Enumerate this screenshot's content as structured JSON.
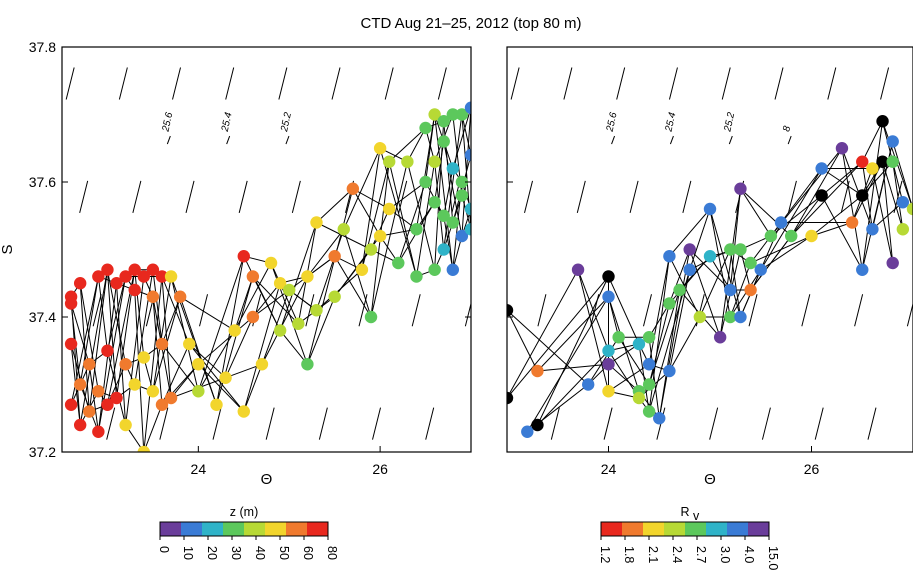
{
  "title": "CTD Aug 21–25, 2012 (top 80 m)",
  "chart_data": [
    {
      "type": "scatter",
      "panel": "left",
      "xlabel": "Θ",
      "ylabel": "S",
      "xlim": [
        22.5,
        27.0
      ],
      "ylim": [
        37.2,
        37.8
      ],
      "xticks": [
        24,
        26
      ],
      "yticks": [
        37.2,
        37.4,
        37.6,
        37.8
      ],
      "isopycnals": [
        "25.6",
        "25.4",
        "25.2"
      ],
      "color_variable": "z (m)",
      "colorbar": {
        "label": "z (m)",
        "ticks": [
          "0",
          "10",
          "20",
          "30",
          "40",
          "50",
          "60",
          "80"
        ],
        "colors": [
          "#6a3d9a",
          "#3a7bd5",
          "#2fb3c8",
          "#5cc85c",
          "#b7d935",
          "#f2d52c",
          "#f07a2e",
          "#e8281e"
        ]
      },
      "points": [
        {
          "x": 22.7,
          "y": 37.45,
          "c": "#e8281e"
        },
        {
          "x": 22.9,
          "y": 37.46,
          "c": "#e8281e"
        },
        {
          "x": 23.0,
          "y": 37.47,
          "c": "#e8281e"
        },
        {
          "x": 23.1,
          "y": 37.45,
          "c": "#e8281e"
        },
        {
          "x": 23.2,
          "y": 37.46,
          "c": "#e8281e"
        },
        {
          "x": 23.3,
          "y": 37.47,
          "c": "#e8281e"
        },
        {
          "x": 23.4,
          "y": 37.46,
          "c": "#e8281e"
        },
        {
          "x": 23.5,
          "y": 37.47,
          "c": "#e8281e"
        },
        {
          "x": 23.6,
          "y": 37.46,
          "c": "#e8281e"
        },
        {
          "x": 23.7,
          "y": 37.46,
          "c": "#f2d52c"
        },
        {
          "x": 22.6,
          "y": 37.43,
          "c": "#e8281e"
        },
        {
          "x": 22.6,
          "y": 37.42,
          "c": "#e8281e"
        },
        {
          "x": 23.3,
          "y": 37.44,
          "c": "#e8281e"
        },
        {
          "x": 23.5,
          "y": 37.43,
          "c": "#f07a2e"
        },
        {
          "x": 23.8,
          "y": 37.43,
          "c": "#f07a2e"
        },
        {
          "x": 22.6,
          "y": 37.36,
          "c": "#e8281e"
        },
        {
          "x": 22.8,
          "y": 37.33,
          "c": "#f07a2e"
        },
        {
          "x": 23.0,
          "y": 37.35,
          "c": "#e8281e"
        },
        {
          "x": 23.2,
          "y": 37.33,
          "c": "#f07a2e"
        },
        {
          "x": 23.4,
          "y": 37.34,
          "c": "#f2d52c"
        },
        {
          "x": 23.6,
          "y": 37.36,
          "c": "#f07a2e"
        },
        {
          "x": 23.9,
          "y": 37.36,
          "c": "#f2d52c"
        },
        {
          "x": 22.7,
          "y": 37.3,
          "c": "#f07a2e"
        },
        {
          "x": 22.9,
          "y": 37.29,
          "c": "#f07a2e"
        },
        {
          "x": 23.1,
          "y": 37.28,
          "c": "#e8281e"
        },
        {
          "x": 23.3,
          "y": 37.3,
          "c": "#f2d52c"
        },
        {
          "x": 23.5,
          "y": 37.29,
          "c": "#f2d52c"
        },
        {
          "x": 23.7,
          "y": 37.28,
          "c": "#f07a2e"
        },
        {
          "x": 24.0,
          "y": 37.29,
          "c": "#b7d935"
        },
        {
          "x": 22.6,
          "y": 37.27,
          "c": "#e8281e"
        },
        {
          "x": 22.8,
          "y": 37.26,
          "c": "#f07a2e"
        },
        {
          "x": 23.0,
          "y": 37.27,
          "c": "#e8281e"
        },
        {
          "x": 22.7,
          "y": 37.24,
          "c": "#e8281e"
        },
        {
          "x": 22.9,
          "y": 37.23,
          "c": "#e8281e"
        },
        {
          "x": 23.2,
          "y": 37.24,
          "c": "#f2d52c"
        },
        {
          "x": 23.4,
          "y": 37.2,
          "c": "#f2d52c"
        },
        {
          "x": 23.6,
          "y": 37.27,
          "c": "#f07a2e"
        },
        {
          "x": 24.2,
          "y": 37.27,
          "c": "#f2d52c"
        },
        {
          "x": 24.0,
          "y": 37.33,
          "c": "#f2d52c"
        },
        {
          "x": 24.3,
          "y": 37.31,
          "c": "#f2d52c"
        },
        {
          "x": 24.5,
          "y": 37.26,
          "c": "#f2d52c"
        },
        {
          "x": 24.7,
          "y": 37.33,
          "c": "#f2d52c"
        },
        {
          "x": 24.4,
          "y": 37.38,
          "c": "#f2d52c"
        },
        {
          "x": 24.6,
          "y": 37.4,
          "c": "#f07a2e"
        },
        {
          "x": 24.6,
          "y": 37.46,
          "c": "#f07a2e"
        },
        {
          "x": 24.8,
          "y": 37.48,
          "c": "#f2d52c"
        },
        {
          "x": 24.9,
          "y": 37.45,
          "c": "#f2d52c"
        },
        {
          "x": 24.5,
          "y": 37.49,
          "c": "#e8281e"
        },
        {
          "x": 25.2,
          "y": 37.46,
          "c": "#f2d52c"
        },
        {
          "x": 25.5,
          "y": 37.49,
          "c": "#f07a2e"
        },
        {
          "x": 25.0,
          "y": 37.44,
          "c": "#b7d935"
        },
        {
          "x": 24.9,
          "y": 37.38,
          "c": "#b7d935"
        },
        {
          "x": 25.1,
          "y": 37.39,
          "c": "#b7d935"
        },
        {
          "x": 25.3,
          "y": 37.41,
          "c": "#b7d935"
        },
        {
          "x": 25.5,
          "y": 37.43,
          "c": "#b7d935"
        },
        {
          "x": 25.8,
          "y": 37.47,
          "c": "#f2d52c"
        },
        {
          "x": 25.2,
          "y": 37.33,
          "c": "#5cc85c"
        },
        {
          "x": 25.3,
          "y": 37.54,
          "c": "#f2d52c"
        },
        {
          "x": 25.7,
          "y": 37.59,
          "c": "#f07a2e"
        },
        {
          "x": 26.0,
          "y": 37.52,
          "c": "#f2d52c"
        },
        {
          "x": 25.6,
          "y": 37.53,
          "c": "#b7d935"
        },
        {
          "x": 25.9,
          "y": 37.5,
          "c": "#b7d935"
        },
        {
          "x": 26.1,
          "y": 37.56,
          "c": "#f2d52c"
        },
        {
          "x": 25.9,
          "y": 37.4,
          "c": "#5cc85c"
        },
        {
          "x": 26.2,
          "y": 37.48,
          "c": "#5cc85c"
        },
        {
          "x": 26.4,
          "y": 37.53,
          "c": "#5cc85c"
        },
        {
          "x": 26.0,
          "y": 37.65,
          "c": "#f2d52c"
        },
        {
          "x": 26.3,
          "y": 37.63,
          "c": "#b7d935"
        },
        {
          "x": 26.5,
          "y": 37.6,
          "c": "#5cc85c"
        },
        {
          "x": 26.1,
          "y": 37.63,
          "c": "#b7d935"
        },
        {
          "x": 26.6,
          "y": 37.57,
          "c": "#5cc85c"
        },
        {
          "x": 26.7,
          "y": 37.55,
          "c": "#5cc85c"
        },
        {
          "x": 26.4,
          "y": 37.46,
          "c": "#5cc85c"
        },
        {
          "x": 26.6,
          "y": 37.47,
          "c": "#5cc85c"
        },
        {
          "x": 26.8,
          "y": 37.47,
          "c": "#3a7bd5"
        },
        {
          "x": 26.9,
          "y": 37.52,
          "c": "#3a7bd5"
        },
        {
          "x": 26.5,
          "y": 37.68,
          "c": "#5cc85c"
        },
        {
          "x": 26.6,
          "y": 37.7,
          "c": "#b7d935"
        },
        {
          "x": 26.7,
          "y": 37.69,
          "c": "#5cc85c"
        },
        {
          "x": 26.8,
          "y": 37.7,
          "c": "#5cc85c"
        },
        {
          "x": 26.9,
          "y": 37.7,
          "c": "#5cc85c"
        },
        {
          "x": 27.0,
          "y": 37.71,
          "c": "#3a7bd5"
        },
        {
          "x": 26.7,
          "y": 37.66,
          "c": "#5cc85c"
        },
        {
          "x": 26.8,
          "y": 37.62,
          "c": "#2fb3c8"
        },
        {
          "x": 26.9,
          "y": 37.6,
          "c": "#5cc85c"
        },
        {
          "x": 27.0,
          "y": 37.64,
          "c": "#3a7bd5"
        },
        {
          "x": 26.6,
          "y": 37.63,
          "c": "#b7d935"
        },
        {
          "x": 26.9,
          "y": 37.58,
          "c": "#5cc85c"
        },
        {
          "x": 27.0,
          "y": 37.56,
          "c": "#2fb3c8"
        },
        {
          "x": 26.8,
          "y": 37.54,
          "c": "#5cc85c"
        },
        {
          "x": 27.0,
          "y": 37.53,
          "c": "#2fb3c8"
        },
        {
          "x": 26.7,
          "y": 37.5,
          "c": "#2fb3c8"
        }
      ]
    },
    {
      "type": "scatter",
      "panel": "right",
      "xlabel": "Θ",
      "ylabel": "",
      "xlim": [
        23.0,
        27.0
      ],
      "ylim": [
        37.2,
        37.8
      ],
      "xticks": [
        24,
        26
      ],
      "isopycnals": [
        "25.6",
        "25.4",
        "25.2",
        "8"
      ],
      "color_variable": "Rᵥ",
      "colorbar": {
        "label": "R",
        "label_sub": "v",
        "ticks": [
          "1.2",
          "1.8",
          "2.1",
          "2.4",
          "2.7",
          "3.0",
          "4.0",
          "15.0"
        ],
        "colors": [
          "#e8281e",
          "#f07a2e",
          "#f2d52c",
          "#b7d935",
          "#5cc85c",
          "#2fb3c8",
          "#3a7bd5",
          "#6a3d9a"
        ]
      },
      "points": [
        {
          "x": 23.0,
          "y": 37.41,
          "c": "#000000"
        },
        {
          "x": 23.0,
          "y": 37.28,
          "c": "#000000"
        },
        {
          "x": 23.3,
          "y": 37.24,
          "c": "#000000"
        },
        {
          "x": 23.2,
          "y": 37.23,
          "c": "#3a7bd5"
        },
        {
          "x": 23.3,
          "y": 37.32,
          "c": "#f07a2e"
        },
        {
          "x": 23.7,
          "y": 37.47,
          "c": "#6a3d9a"
        },
        {
          "x": 24.0,
          "y": 37.46,
          "c": "#000000"
        },
        {
          "x": 24.0,
          "y": 37.43,
          "c": "#3a7bd5"
        },
        {
          "x": 24.0,
          "y": 37.35,
          "c": "#2fb3c8"
        },
        {
          "x": 24.0,
          "y": 37.33,
          "c": "#6a3d9a"
        },
        {
          "x": 23.8,
          "y": 37.3,
          "c": "#3a7bd5"
        },
        {
          "x": 24.0,
          "y": 37.29,
          "c": "#f2d52c"
        },
        {
          "x": 24.1,
          "y": 37.37,
          "c": "#5cc85c"
        },
        {
          "x": 24.4,
          "y": 37.37,
          "c": "#5cc85c"
        },
        {
          "x": 24.3,
          "y": 37.36,
          "c": "#2fb3c8"
        },
        {
          "x": 24.4,
          "y": 37.33,
          "c": "#3a7bd5"
        },
        {
          "x": 24.4,
          "y": 37.3,
          "c": "#5cc85c"
        },
        {
          "x": 24.3,
          "y": 37.29,
          "c": "#5cc85c"
        },
        {
          "x": 24.3,
          "y": 37.28,
          "c": "#b7d935"
        },
        {
          "x": 24.4,
          "y": 37.26,
          "c": "#5cc85c"
        },
        {
          "x": 24.6,
          "y": 37.32,
          "c": "#3a7bd5"
        },
        {
          "x": 24.5,
          "y": 37.25,
          "c": "#3a7bd5"
        },
        {
          "x": 24.6,
          "y": 37.42,
          "c": "#5cc85c"
        },
        {
          "x": 24.7,
          "y": 37.44,
          "c": "#5cc85c"
        },
        {
          "x": 24.9,
          "y": 37.4,
          "c": "#b7d935"
        },
        {
          "x": 25.1,
          "y": 37.37,
          "c": "#6a3d9a"
        },
        {
          "x": 24.8,
          "y": 37.47,
          "c": "#3a7bd5"
        },
        {
          "x": 24.6,
          "y": 37.49,
          "c": "#3a7bd5"
        },
        {
          "x": 24.8,
          "y": 37.5,
          "c": "#6a3d9a"
        },
        {
          "x": 25.0,
          "y": 37.49,
          "c": "#2fb3c8"
        },
        {
          "x": 25.2,
          "y": 37.5,
          "c": "#5cc85c"
        },
        {
          "x": 25.3,
          "y": 37.5,
          "c": "#5cc85c"
        },
        {
          "x": 25.4,
          "y": 37.48,
          "c": "#5cc85c"
        },
        {
          "x": 25.5,
          "y": 37.47,
          "c": "#3a7bd5"
        },
        {
          "x": 25.2,
          "y": 37.44,
          "c": "#3a7bd5"
        },
        {
          "x": 25.4,
          "y": 37.44,
          "c": "#f07a2e"
        },
        {
          "x": 25.2,
          "y": 37.4,
          "c": "#5cc85c"
        },
        {
          "x": 25.3,
          "y": 37.4,
          "c": "#3a7bd5"
        },
        {
          "x": 25.0,
          "y": 37.56,
          "c": "#3a7bd5"
        },
        {
          "x": 25.3,
          "y": 37.59,
          "c": "#6a3d9a"
        },
        {
          "x": 25.6,
          "y": 37.52,
          "c": "#5cc85c"
        },
        {
          "x": 25.7,
          "y": 37.54,
          "c": "#3a7bd5"
        },
        {
          "x": 25.8,
          "y": 37.52,
          "c": "#5cc85c"
        },
        {
          "x": 26.0,
          "y": 37.52,
          "c": "#f2d52c"
        },
        {
          "x": 26.1,
          "y": 37.58,
          "c": "#000000"
        },
        {
          "x": 26.1,
          "y": 37.62,
          "c": "#3a7bd5"
        },
        {
          "x": 26.3,
          "y": 37.65,
          "c": "#6a3d9a"
        },
        {
          "x": 26.5,
          "y": 37.63,
          "c": "#e8281e"
        },
        {
          "x": 26.7,
          "y": 37.63,
          "c": "#000000"
        },
        {
          "x": 26.6,
          "y": 37.62,
          "c": "#f2d52c"
        },
        {
          "x": 26.8,
          "y": 37.63,
          "c": "#5cc85c"
        },
        {
          "x": 26.8,
          "y": 37.66,
          "c": "#3a7bd5"
        },
        {
          "x": 26.7,
          "y": 37.69,
          "c": "#000000"
        },
        {
          "x": 26.5,
          "y": 37.58,
          "c": "#000000"
        },
        {
          "x": 26.4,
          "y": 37.54,
          "c": "#f07a2e"
        },
        {
          "x": 26.6,
          "y": 37.53,
          "c": "#3a7bd5"
        },
        {
          "x": 26.5,
          "y": 37.47,
          "c": "#3a7bd5"
        },
        {
          "x": 26.8,
          "y": 37.48,
          "c": "#6a3d9a"
        },
        {
          "x": 26.9,
          "y": 37.57,
          "c": "#3a7bd5"
        },
        {
          "x": 26.9,
          "y": 37.53,
          "c": "#b7d935"
        },
        {
          "x": 27.0,
          "y": 37.56,
          "c": "#b7d935"
        }
      ]
    }
  ]
}
